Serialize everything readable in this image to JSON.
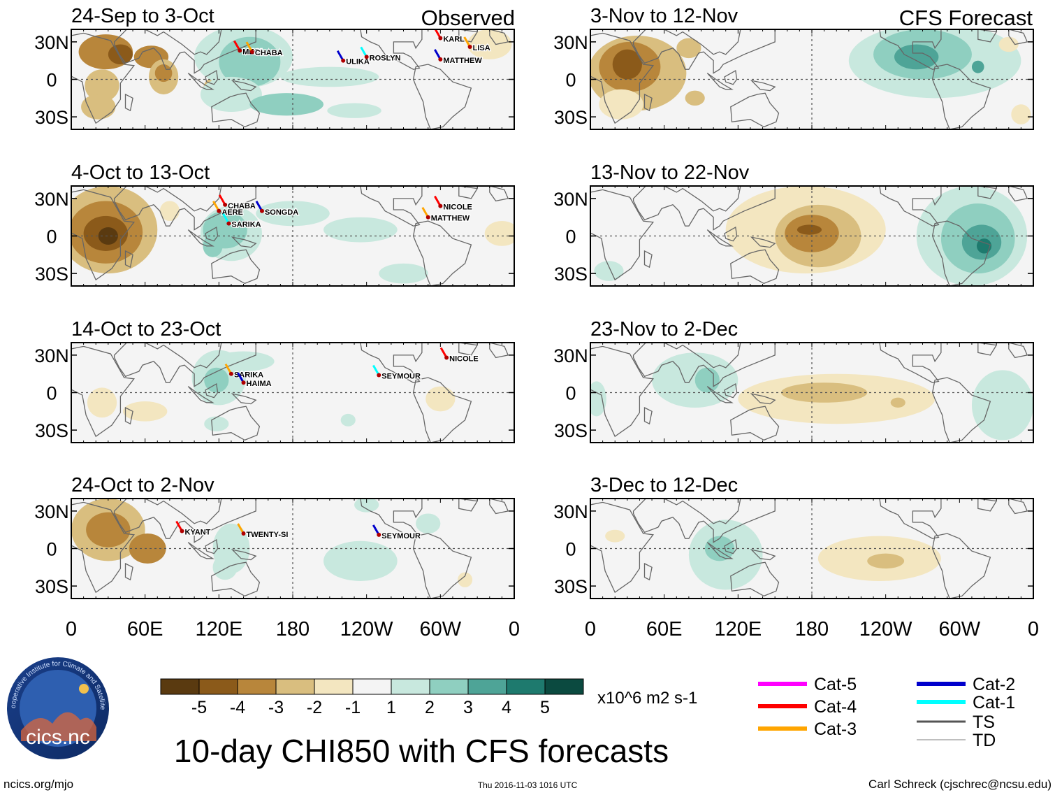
{
  "figure": {
    "title": "10-day CHI850 with CFS forecasts",
    "observed_label": "Observed",
    "forecast_label": "CFS Forecast",
    "units_label": "x10^6 m2 s-1"
  },
  "logo": {
    "ring_text": "Cooperative Institute for Climate and Satellites",
    "name": "cics.nc"
  },
  "footer": {
    "url": "ncics.org/mjo",
    "timestamp": "Thu 2016-11-03 1016 UTC",
    "author": "Carl Schreck (cjschrec@ncsu.edu)"
  },
  "legend": {
    "items": [
      {
        "label": "Cat-5",
        "color": "#ff00ff"
      },
      {
        "label": "Cat-4",
        "color": "#ff0000"
      },
      {
        "label": "Cat-3",
        "color": "#ffa500"
      },
      {
        "label": "Cat-2",
        "color": "#0000cc"
      },
      {
        "label": "Cat-1",
        "color": "#00ffff"
      },
      {
        "label": "TS",
        "color": "#555555"
      },
      {
        "label": "TD",
        "color": "#aaaaaa"
      }
    ]
  },
  "chart_data": {
    "type": "heatmap",
    "variable": "CHI850 (10-day mean velocity potential at 850 hPa)",
    "x_ticks": [
      "0",
      "60E",
      "120E",
      "180",
      "120W",
      "60W",
      "0"
    ],
    "x_tick_values": [
      0,
      60,
      120,
      180,
      240,
      300,
      360
    ],
    "y_ticks": [
      "30N",
      "0",
      "30S"
    ],
    "y_tick_values": [
      30,
      0,
      -30
    ],
    "xlim": [
      0,
      360
    ],
    "ylim": [
      -40,
      40
    ],
    "colorbar": {
      "ticks": [
        "-5",
        "-4",
        "-3",
        "-2",
        "-1",
        "1",
        "2",
        "3",
        "4",
        "5"
      ],
      "tick_values": [
        -5,
        -4,
        -3,
        -2,
        -1,
        1,
        2,
        3,
        4,
        5
      ],
      "colors": [
        "#5a3a10",
        "#8b5a1a",
        "#b8863b",
        "#d9be7f",
        "#f3e6c0",
        "#f4f4f4",
        "#c8e8de",
        "#8fcfc0",
        "#4ea497",
        "#1e7a6e",
        "#0b4a40"
      ]
    },
    "panels": [
      {
        "id": "obs1",
        "column": "left",
        "row": 0,
        "kind": "observed",
        "period": "24-Sep to 3-Oct",
        "fields": [
          {
            "lon": 28,
            "lat": 22,
            "rx": 22,
            "ry": 14,
            "value": -3
          },
          {
            "lon": 40,
            "lat": 20,
            "rx": 10,
            "ry": 8,
            "value": -4
          },
          {
            "lon": 65,
            "lat": 18,
            "rx": 14,
            "ry": 9,
            "value": -3
          },
          {
            "lon": 25,
            "lat": -5,
            "rx": 14,
            "ry": 13,
            "value": -2
          },
          {
            "lon": 75,
            "lat": 2,
            "rx": 12,
            "ry": 14,
            "value": -2
          },
          {
            "lon": 22,
            "lat": -22,
            "rx": 14,
            "ry": 10,
            "value": -2
          },
          {
            "lon": 75,
            "lat": 5,
            "rx": 7,
            "ry": 7,
            "value": -3
          },
          {
            "lon": 112,
            "lat": -10,
            "rx": 5,
            "ry": 10,
            "value": -2
          },
          {
            "lon": 140,
            "lat": 18,
            "rx": 40,
            "ry": 25,
            "value": 1
          },
          {
            "lon": 145,
            "lat": 14,
            "rx": 25,
            "ry": 20,
            "value": 2
          },
          {
            "lon": 130,
            "lat": -12,
            "rx": 25,
            "ry": 14,
            "value": 1
          },
          {
            "lon": 175,
            "lat": -20,
            "rx": 30,
            "ry": 9,
            "value": 2
          },
          {
            "lon": 210,
            "lat": 2,
            "rx": 40,
            "ry": 8,
            "value": 1
          },
          {
            "lon": 230,
            "lat": -25,
            "rx": 22,
            "ry": 6,
            "value": 1
          },
          {
            "lon": 340,
            "lat": 28,
            "rx": 18,
            "ry": 12,
            "value": -1
          }
        ],
        "storms": [
          {
            "name": "MEGI",
            "lon": 137,
            "lat": 23
          },
          {
            "name": "CHABA",
            "lon": 147,
            "lat": 22
          },
          {
            "name": "ULIKA",
            "lon": 221,
            "lat": 15
          },
          {
            "name": "ROSLYN",
            "lon": 240,
            "lat": 18
          },
          {
            "name": "KARL",
            "lon": 300,
            "lat": 33
          },
          {
            "name": "LISA",
            "lon": 324,
            "lat": 26
          },
          {
            "name": "MATTHEW",
            "lon": 300,
            "lat": 16
          }
        ]
      },
      {
        "id": "obs2",
        "column": "left",
        "row": 1,
        "kind": "observed",
        "period": "4-Oct to 13-Oct",
        "fields": [
          {
            "lon": 30,
            "lat": 5,
            "rx": 40,
            "ry": 35,
            "value": -2
          },
          {
            "lon": 28,
            "lat": 3,
            "rx": 30,
            "ry": 25,
            "value": -3
          },
          {
            "lon": 28,
            "lat": 2,
            "rx": 18,
            "ry": 14,
            "value": -4
          },
          {
            "lon": 30,
            "lat": 0,
            "rx": 8,
            "ry": 7,
            "value": -5
          },
          {
            "lon": 80,
            "lat": 20,
            "rx": 8,
            "ry": 8,
            "value": -1
          },
          {
            "lon": 130,
            "lat": 2,
            "rx": 25,
            "ry": 22,
            "value": 1
          },
          {
            "lon": 125,
            "lat": 5,
            "rx": 18,
            "ry": 15,
            "value": 2
          },
          {
            "lon": 115,
            "lat": -8,
            "rx": 8,
            "ry": 9,
            "value": 2
          },
          {
            "lon": 180,
            "lat": 18,
            "rx": 30,
            "ry": 10,
            "value": 1
          },
          {
            "lon": 235,
            "lat": 5,
            "rx": 30,
            "ry": 10,
            "value": 1
          },
          {
            "lon": 270,
            "lat": -30,
            "rx": 20,
            "ry": 8,
            "value": 1
          },
          {
            "lon": 350,
            "lat": 2,
            "rx": 14,
            "ry": 10,
            "value": -1
          }
        ],
        "storms": [
          {
            "name": "CHABA",
            "lon": 125,
            "lat": 25
          },
          {
            "name": "AERE",
            "lon": 120,
            "lat": 20
          },
          {
            "name": "SONGDA",
            "lon": 155,
            "lat": 20
          },
          {
            "name": "SARIKA",
            "lon": 128,
            "lat": 10
          },
          {
            "name": "NICOLE",
            "lon": 300,
            "lat": 24
          },
          {
            "name": "MATTHEW",
            "lon": 290,
            "lat": 15
          }
        ]
      },
      {
        "id": "obs3",
        "column": "left",
        "row": 2,
        "kind": "observed",
        "period": "14-Oct to 23-Oct",
        "fields": [
          {
            "lon": 25,
            "lat": -8,
            "rx": 12,
            "ry": 12,
            "value": -1
          },
          {
            "lon": 60,
            "lat": -15,
            "rx": 18,
            "ry": 8,
            "value": -1
          },
          {
            "lon": 120,
            "lat": 12,
            "rx": 22,
            "ry": 22,
            "value": 1
          },
          {
            "lon": 118,
            "lat": 10,
            "rx": 10,
            "ry": 10,
            "value": 2
          },
          {
            "lon": 140,
            "lat": 25,
            "rx": 25,
            "ry": 8,
            "value": 1
          },
          {
            "lon": 118,
            "lat": -25,
            "rx": 10,
            "ry": 6,
            "value": 1
          },
          {
            "lon": 225,
            "lat": -22,
            "rx": 6,
            "ry": 5,
            "value": 1
          },
          {
            "lon": 300,
            "lat": -5,
            "rx": 12,
            "ry": 10,
            "value": -1
          }
        ],
        "storms": [
          {
            "name": "NICOLE",
            "lon": 305,
            "lat": 28
          },
          {
            "name": "SARIKA",
            "lon": 130,
            "lat": 15
          },
          {
            "name": "HAIMA",
            "lon": 140,
            "lat": 8
          },
          {
            "name": "SEYMOUR",
            "lon": 250,
            "lat": 14
          }
        ]
      },
      {
        "id": "obs4",
        "column": "left",
        "row": 3,
        "kind": "observed",
        "period": "24-Oct to 2-Nov",
        "fields": [
          {
            "lon": 30,
            "lat": 15,
            "rx": 30,
            "ry": 25,
            "value": -2
          },
          {
            "lon": 30,
            "lat": 15,
            "rx": 18,
            "ry": 14,
            "value": -3
          },
          {
            "lon": 62,
            "lat": 0,
            "rx": 15,
            "ry": 12,
            "value": -3
          },
          {
            "lon": 130,
            "lat": 0,
            "rx": 15,
            "ry": 20,
            "value": 1
          },
          {
            "lon": 125,
            "lat": -15,
            "rx": 10,
            "ry": 10,
            "value": 1
          },
          {
            "lon": 235,
            "lat": -10,
            "rx": 30,
            "ry": 16,
            "value": 1
          },
          {
            "lon": 240,
            "lat": 35,
            "rx": 10,
            "ry": 6,
            "value": 1
          },
          {
            "lon": 290,
            "lat": 20,
            "rx": 10,
            "ry": 8,
            "value": 1
          },
          {
            "lon": 320,
            "lat": -25,
            "rx": 6,
            "ry": 6,
            "value": -1
          }
        ],
        "storms": [
          {
            "name": "KYANT",
            "lon": 90,
            "lat": 14
          },
          {
            "name": "TWENTY-SI",
            "lon": 140,
            "lat": 12
          },
          {
            "name": "SEYMOUR",
            "lon": 250,
            "lat": 11
          }
        ]
      },
      {
        "id": "fc1",
        "column": "right",
        "row": 0,
        "kind": "forecast",
        "period": "3-Nov to 12-Nov",
        "fields": [
          {
            "lon": 38,
            "lat": 5,
            "rx": 40,
            "ry": 30,
            "value": -2
          },
          {
            "lon": 32,
            "lat": 10,
            "rx": 25,
            "ry": 20,
            "value": -3
          },
          {
            "lon": 30,
            "lat": 12,
            "rx": 12,
            "ry": 12,
            "value": -4
          },
          {
            "lon": 80,
            "lat": 25,
            "rx": 10,
            "ry": 8,
            "value": -2
          },
          {
            "lon": 25,
            "lat": -20,
            "rx": 18,
            "ry": 12,
            "value": -1
          },
          {
            "lon": 85,
            "lat": -15,
            "rx": 8,
            "ry": 6,
            "value": -2
          },
          {
            "lon": 280,
            "lat": 15,
            "rx": 70,
            "ry": 30,
            "value": 1
          },
          {
            "lon": 270,
            "lat": 20,
            "rx": 40,
            "ry": 20,
            "value": 2
          },
          {
            "lon": 265,
            "lat": 18,
            "rx": 18,
            "ry": 10,
            "value": 3
          },
          {
            "lon": 315,
            "lat": 10,
            "rx": 5,
            "ry": 5,
            "value": 3
          },
          {
            "lon": 350,
            "lat": -28,
            "rx": 8,
            "ry": 8,
            "value": -1
          },
          {
            "lon": 340,
            "lat": 28,
            "rx": 8,
            "ry": 6,
            "value": -1
          }
        ],
        "storms": []
      },
      {
        "id": "fc2",
        "column": "right",
        "row": 1,
        "kind": "forecast",
        "period": "13-Nov to 22-Nov",
        "fields": [
          {
            "lon": 175,
            "lat": 5,
            "rx": 65,
            "ry": 35,
            "value": -1
          },
          {
            "lon": 185,
            "lat": 0,
            "rx": 35,
            "ry": 25,
            "value": -2
          },
          {
            "lon": 180,
            "lat": 2,
            "rx": 22,
            "ry": 15,
            "value": -3
          },
          {
            "lon": 178,
            "lat": 5,
            "rx": 10,
            "ry": 4,
            "value": -4
          },
          {
            "lon": 310,
            "lat": 0,
            "rx": 45,
            "ry": 40,
            "value": 1
          },
          {
            "lon": 315,
            "lat": -2,
            "rx": 30,
            "ry": 28,
            "value": 2
          },
          {
            "lon": 318,
            "lat": -5,
            "rx": 16,
            "ry": 14,
            "value": 3
          },
          {
            "lon": 320,
            "lat": -8,
            "rx": 6,
            "ry": 6,
            "value": 4
          },
          {
            "lon": 15,
            "lat": -28,
            "rx": 12,
            "ry": 8,
            "value": 1
          }
        ],
        "storms": []
      },
      {
        "id": "fc3",
        "column": "right",
        "row": 2,
        "kind": "forecast",
        "period": "23-Nov to 2-Dec",
        "fields": [
          {
            "lon": 85,
            "lat": 10,
            "rx": 35,
            "ry": 22,
            "value": 1
          },
          {
            "lon": 95,
            "lat": 10,
            "rx": 10,
            "ry": 10,
            "value": 2
          },
          {
            "lon": 200,
            "lat": -5,
            "rx": 80,
            "ry": 20,
            "value": -1
          },
          {
            "lon": 190,
            "lat": 0,
            "rx": 35,
            "ry": 8,
            "value": -2
          },
          {
            "lon": 250,
            "lat": -8,
            "rx": 6,
            "ry": 4,
            "value": -2
          },
          {
            "lon": 335,
            "lat": -10,
            "rx": 25,
            "ry": 28,
            "value": 1
          },
          {
            "lon": 5,
            "lat": -5,
            "rx": 8,
            "ry": 14,
            "value": 1
          }
        ],
        "storms": []
      },
      {
        "id": "fc4",
        "column": "right",
        "row": 3,
        "kind": "forecast",
        "period": "3-Dec to 12-Dec",
        "fields": [
          {
            "lon": 110,
            "lat": -5,
            "rx": 30,
            "ry": 28,
            "value": 1
          },
          {
            "lon": 105,
            "lat": 0,
            "rx": 12,
            "ry": 10,
            "value": 2
          },
          {
            "lon": 235,
            "lat": -8,
            "rx": 50,
            "ry": 18,
            "value": -1
          },
          {
            "lon": 240,
            "lat": -10,
            "rx": 15,
            "ry": 6,
            "value": -2
          },
          {
            "lon": 20,
            "lat": 10,
            "rx": 8,
            "ry": 5,
            "value": -1
          }
        ],
        "storms": []
      }
    ]
  }
}
